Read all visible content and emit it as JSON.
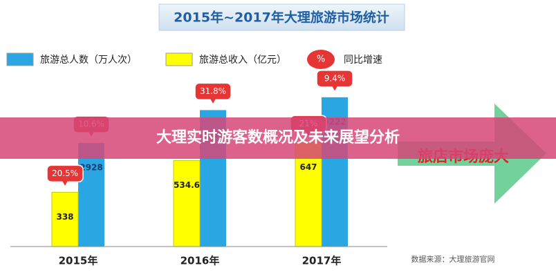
{
  "chart_data": {
    "type": "bar",
    "title": "2015年~2017年大理旅游市场统计",
    "categories": [
      "2015年",
      "2016年",
      "2017年"
    ],
    "series": [
      {
        "name": "旅游总人数（万人次）",
        "color": "#2aa7e3",
        "values": [
          2928,
          3859,
          4222
        ],
        "growth_labels": [
          "10.6%",
          "31.8%",
          "9.4%"
        ]
      },
      {
        "name": "旅游总收入（亿元）",
        "color": "#ffff00",
        "axis": "y2",
        "values": [
          338,
          534.6,
          647
        ],
        "growth_labels": [
          "20.5%",
          null,
          "21%"
        ]
      }
    ],
    "ylim": [
      0,
      5000
    ],
    "y2lim": [
      0,
      1100
    ],
    "growth_legend_symbol": "%",
    "growth_legend": "同比增速",
    "source": "数据来源：大理旅游官网",
    "arrow_text": "旅店市场庞大"
  },
  "banner": "大理实时游客数概况及未来展望分析"
}
